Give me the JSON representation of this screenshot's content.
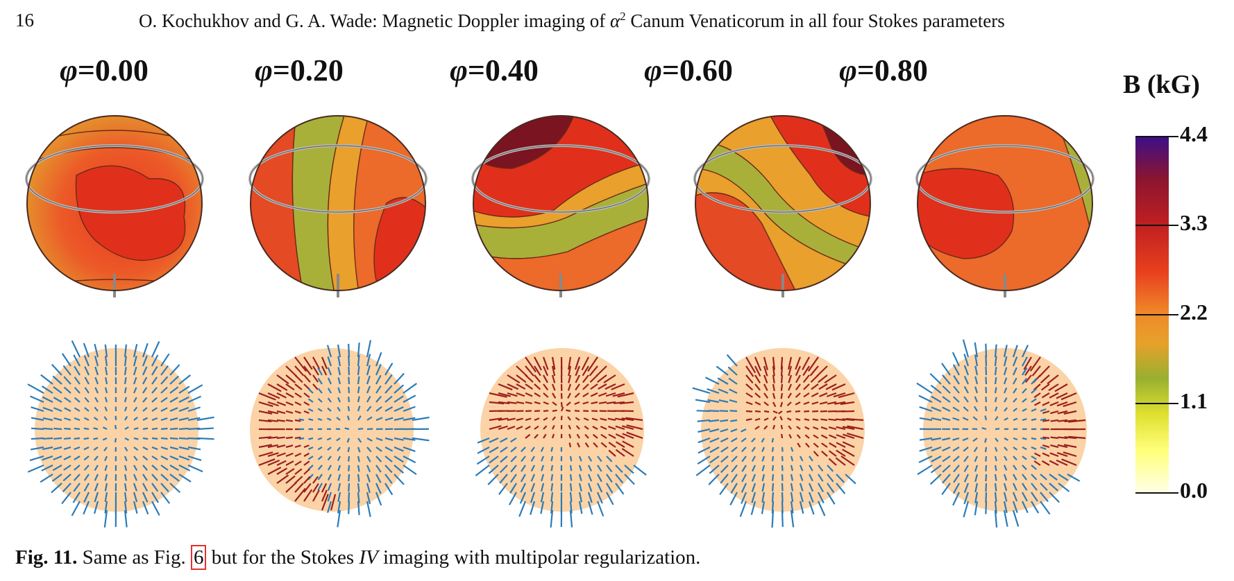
{
  "header": {
    "page_number": "16",
    "running_head_before": "O. Kochukhov and G. A. Wade: Magnetic Doppler imaging of ",
    "alpha": "α",
    "alpha_sup": "2",
    "running_head_after": " Canum Venaticorum in all four Stokes parameters"
  },
  "figure": {
    "phases": [
      {
        "symbol": "φ",
        "value": "=0.00"
      },
      {
        "symbol": "φ",
        "value": "=0.20"
      },
      {
        "symbol": "φ",
        "value": "=0.40"
      },
      {
        "symbol": "φ",
        "value": "=0.60"
      },
      {
        "symbol": "φ",
        "value": "=0.80"
      }
    ],
    "colorbar": {
      "title": "B (kG)",
      "ticks": [
        "4.4",
        "3.3",
        "2.2",
        "1.1",
        "0.0"
      ],
      "colors": [
        "#3b0f8a",
        "#c02020",
        "#e7a12a",
        "#98b030",
        "#ffffe8"
      ]
    },
    "vector_colors": {
      "outward": "#2a7bb8",
      "inward": "#9b1f1f",
      "surface": "#fbd3a6"
    }
  },
  "caption": {
    "label": "Fig. 11.",
    "text_before": " Same as Fig. ",
    "ref": "6",
    "text_mid": " but for the Stokes ",
    "stokes": "IV",
    "text_after": " imaging with multipolar regularization."
  }
}
